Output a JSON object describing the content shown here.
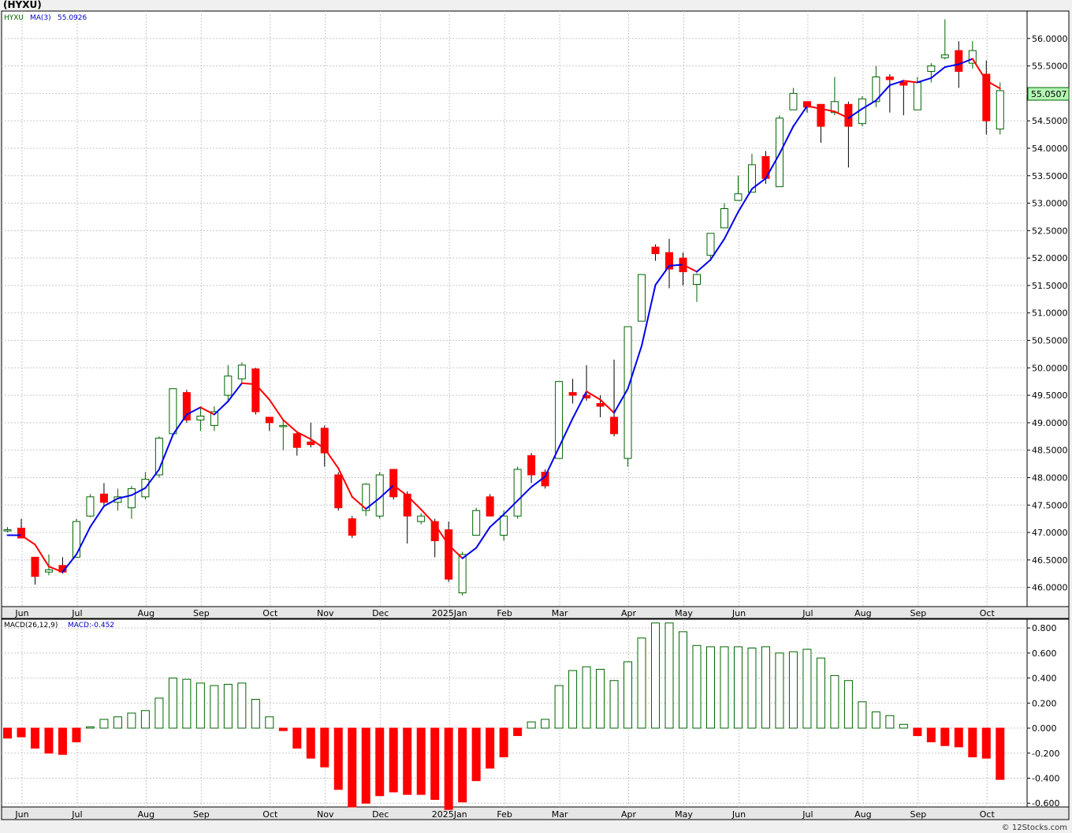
{
  "ticker": "(HYXU)",
  "watermark": "© 12Stocks.com",
  "colors": {
    "up": "#006400",
    "down": "#ff0000",
    "ma_up": "#0000ee",
    "ma_down": "#ff0000",
    "grid": "#c8c8c8",
    "last_price_bg": "#b3f5b3"
  },
  "price_panel": {
    "legend_symbol": "HYXU",
    "legend_ma": "MA(3)",
    "legend_ma_value": "55.0926",
    "last_price_label": "55.0507",
    "y_ticks": [
      "46.0000",
      "46.5000",
      "47.0000",
      "47.5000",
      "48.0000",
      "48.5000",
      "49.0000",
      "49.5000",
      "50.0000",
      "50.5000",
      "51.0000",
      "51.5000",
      "52.0000",
      "52.5000",
      "53.0000",
      "53.5000",
      "54.0000",
      "54.5000",
      "55.0000",
      "55.5000",
      "56.0000"
    ]
  },
  "macd_panel": {
    "legend_name": "MACD(26,12,9)",
    "legend_value": "MACD:-0.452",
    "y_ticks": [
      "-0.600",
      "-0.400",
      "-0.200",
      "0.000",
      "0.200",
      "0.400",
      "0.600",
      "0.800"
    ]
  },
  "x_axis": {
    "labels": [
      {
        "text": "Jun",
        "week": 1
      },
      {
        "text": "Jul",
        "week": 5
      },
      {
        "text": "Aug",
        "week": 10
      },
      {
        "text": "Sep",
        "week": 14
      },
      {
        "text": "Oct",
        "week": 19
      },
      {
        "text": "Nov",
        "week": 23
      },
      {
        "text": "Dec",
        "week": 27
      },
      {
        "text": "2025Jan",
        "week": 32
      },
      {
        "text": "Feb",
        "week": 36
      },
      {
        "text": "Mar",
        "week": 40
      },
      {
        "text": "Apr",
        "week": 45
      },
      {
        "text": "May",
        "week": 49
      },
      {
        "text": "Jun",
        "week": 53
      },
      {
        "text": "Jul",
        "week": 58
      },
      {
        "text": "Aug",
        "week": 62
      },
      {
        "text": "Sep",
        "week": 66
      },
      {
        "text": "Oct",
        "week": 71
      }
    ]
  },
  "chart_data": [
    {
      "type": "candlestick",
      "title": "",
      "ylim": [
        45.65,
        56.5
      ],
      "grid": true,
      "x_count": 73,
      "candles": [
        [
          47.05,
          47.05,
          47.1,
          47.0
        ],
        [
          47.08,
          46.9,
          47.25,
          46.9
        ],
        [
          46.55,
          46.2,
          46.55,
          46.05
        ],
        [
          46.28,
          46.32,
          46.6,
          46.22
        ],
        [
          46.4,
          46.28,
          46.55,
          46.25
        ],
        [
          46.55,
          47.2,
          47.25,
          46.55
        ],
        [
          47.3,
          47.65,
          47.7,
          47.28
        ],
        [
          47.7,
          47.55,
          47.9,
          47.5
        ],
        [
          47.55,
          47.65,
          47.8,
          47.4
        ],
        [
          47.45,
          47.8,
          47.85,
          47.25
        ],
        [
          47.65,
          47.97,
          48.1,
          47.6
        ],
        [
          48.05,
          48.72,
          48.75,
          48.0
        ],
        [
          48.8,
          49.62,
          49.62,
          48.8
        ],
        [
          49.55,
          49.05,
          49.6,
          49.0
        ],
        [
          49.05,
          49.12,
          49.3,
          48.85
        ],
        [
          48.95,
          49.2,
          49.3,
          48.85
        ],
        [
          49.5,
          49.85,
          50.05,
          49.4
        ],
        [
          49.8,
          50.05,
          50.1,
          49.7
        ],
        [
          49.98,
          49.2,
          50.0,
          49.15
        ],
        [
          49.1,
          49.0,
          49.1,
          48.85
        ],
        [
          48.93,
          48.95,
          49.05,
          48.5
        ],
        [
          48.8,
          48.55,
          48.85,
          48.4
        ],
        [
          48.65,
          48.6,
          49.0,
          48.55
        ],
        [
          48.9,
          48.45,
          48.95,
          48.2
        ],
        [
          48.05,
          47.45,
          48.1,
          47.4
        ],
        [
          47.25,
          46.95,
          47.3,
          46.9
        ],
        [
          47.4,
          47.88,
          47.9,
          47.3
        ],
        [
          47.3,
          48.05,
          48.1,
          47.25
        ],
        [
          48.15,
          47.65,
          48.15,
          47.6
        ],
        [
          47.7,
          47.3,
          47.75,
          46.8
        ],
        [
          47.2,
          47.3,
          47.35,
          47.15
        ],
        [
          47.2,
          46.85,
          47.25,
          46.55
        ],
        [
          47.05,
          46.15,
          47.2,
          46.1
        ],
        [
          45.9,
          46.6,
          46.65,
          45.85
        ],
        [
          46.95,
          47.4,
          47.45,
          46.95
        ],
        [
          47.65,
          47.3,
          47.7,
          47.3
        ],
        [
          46.95,
          47.3,
          47.4,
          46.85
        ],
        [
          47.3,
          48.15,
          48.2,
          47.25
        ],
        [
          48.4,
          48.05,
          48.45,
          47.9
        ],
        [
          48.1,
          47.85,
          48.15,
          47.8
        ],
        [
          48.35,
          49.75,
          49.75,
          48.35
        ],
        [
          49.55,
          49.5,
          49.8,
          49.35
        ],
        [
          49.5,
          49.45,
          50.05,
          49.4
        ],
        [
          49.35,
          49.3,
          49.5,
          49.1
        ],
        [
          49.1,
          48.8,
          50.15,
          48.75
        ],
        [
          48.35,
          50.75,
          50.75,
          48.2
        ],
        [
          50.85,
          51.7,
          51.7,
          50.85
        ],
        [
          52.2,
          52.08,
          52.25,
          51.95
        ],
        [
          52.1,
          51.8,
          52.35,
          51.45
        ],
        [
          52.0,
          51.75,
          52.1,
          51.5
        ],
        [
          51.52,
          51.7,
          51.72,
          51.2
        ],
        [
          52.05,
          52.45,
          52.45,
          51.95
        ],
        [
          52.55,
          52.9,
          53.0,
          52.55
        ],
        [
          53.05,
          53.17,
          53.5,
          53.05
        ],
        [
          53.2,
          53.7,
          53.9,
          53.2
        ],
        [
          53.85,
          53.45,
          53.95,
          53.35
        ],
        [
          53.3,
          54.55,
          54.6,
          53.3
        ],
        [
          54.7,
          55.0,
          55.1,
          54.7
        ],
        [
          54.85,
          54.75,
          54.85,
          54.65
        ],
        [
          54.8,
          54.4,
          54.8,
          54.1
        ],
        [
          54.65,
          54.85,
          55.3,
          54.6
        ],
        [
          54.8,
          54.4,
          54.85,
          53.65
        ],
        [
          54.45,
          54.9,
          54.95,
          54.4
        ],
        [
          54.85,
          55.3,
          55.5,
          54.75
        ],
        [
          55.3,
          55.25,
          55.35,
          54.65
        ],
        [
          55.2,
          55.15,
          55.25,
          54.6
        ],
        [
          54.7,
          55.2,
          55.3,
          54.7
        ],
        [
          55.4,
          55.5,
          55.55,
          55.2
        ],
        [
          55.65,
          55.7,
          56.35,
          55.62
        ],
        [
          55.78,
          55.4,
          55.95,
          55.1
        ],
        [
          55.55,
          55.78,
          55.95,
          55.45
        ],
        [
          55.35,
          54.5,
          55.6,
          54.25
        ],
        [
          54.35,
          55.05,
          55.2,
          54.25
        ]
      ],
      "ma3": [
        46.95,
        46.95,
        46.78,
        46.38,
        46.28,
        46.6,
        47.1,
        47.48,
        47.62,
        47.68,
        47.81,
        48.15,
        48.78,
        49.15,
        49.28,
        49.15,
        49.39,
        49.72,
        49.7,
        49.42,
        49.05,
        48.83,
        48.7,
        48.53,
        48.17,
        47.65,
        47.43,
        47.63,
        47.86,
        47.67,
        47.42,
        47.15,
        46.77,
        46.53,
        46.72,
        47.1,
        47.33,
        47.58,
        47.83,
        48.02,
        48.55,
        49.08,
        49.57,
        49.42,
        49.18,
        49.62,
        50.4,
        51.51,
        51.86,
        51.88,
        51.75,
        51.97,
        52.35,
        52.84,
        53.26,
        53.45,
        53.9,
        54.4,
        54.77,
        54.72,
        54.67,
        54.55,
        54.72,
        54.87,
        55.15,
        55.23,
        55.2,
        55.28,
        55.48,
        55.53,
        55.63,
        55.23,
        55.09
      ],
      "ma3_legend_value": 55.0926,
      "last_price": 55.0507
    },
    {
      "type": "bar",
      "title": "",
      "ylim": [
        -0.63,
        0.87
      ],
      "grid": true,
      "series_name": "MACD(26,12,9)",
      "values": [
        -0.08,
        -0.07,
        -0.16,
        -0.2,
        -0.21,
        -0.11,
        0.01,
        0.07,
        0.09,
        0.12,
        0.14,
        0.24,
        0.4,
        0.39,
        0.36,
        0.34,
        0.35,
        0.36,
        0.23,
        0.09,
        -0.02,
        -0.16,
        -0.24,
        -0.31,
        -0.49,
        -0.63,
        -0.6,
        -0.54,
        -0.51,
        -0.53,
        -0.53,
        -0.57,
        -0.65,
        -0.59,
        -0.42,
        -0.32,
        -0.23,
        -0.06,
        0.05,
        0.07,
        0.34,
        0.46,
        0.49,
        0.47,
        0.38,
        0.53,
        0.72,
        0.84,
        0.84,
        0.77,
        0.66,
        0.65,
        0.65,
        0.65,
        0.64,
        0.65,
        0.6,
        0.61,
        0.63,
        0.56,
        0.42,
        0.38,
        0.21,
        0.13,
        0.1,
        0.03,
        -0.06,
        -0.11,
        -0.14,
        -0.15,
        -0.23,
        -0.24,
        -0.41,
        -0.45
      ],
      "value_count_used": 73,
      "last_value": -0.452
    }
  ]
}
